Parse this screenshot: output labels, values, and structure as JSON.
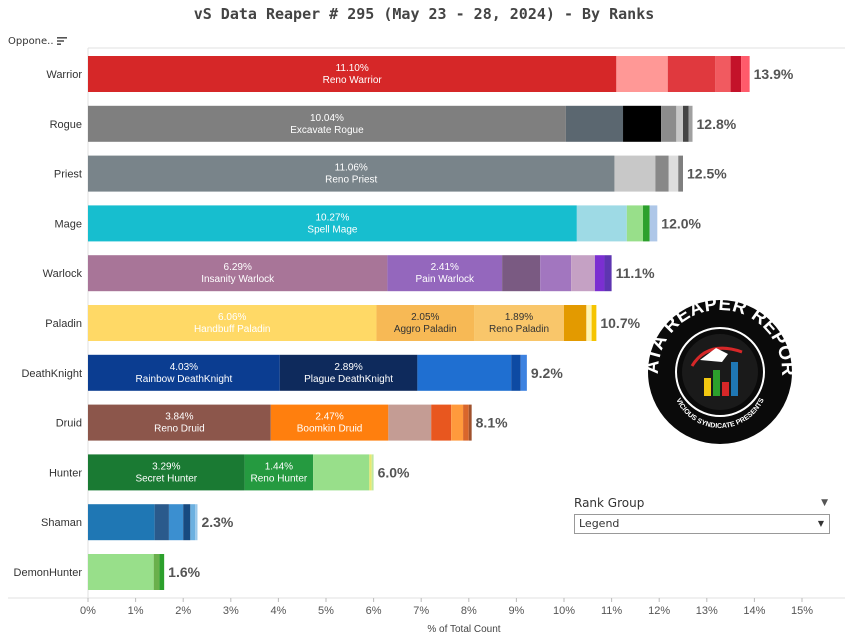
{
  "title": "vS Data Reaper #  295 (May 23 - 28, 2024) - By Ranks",
  "header": {
    "opponent_label": "Oppone..",
    "sort_icon": "sort-descending-icon"
  },
  "filter": {
    "title": "Rank Group",
    "selected": "Legend"
  },
  "logo": {
    "text_top": "DATA REAPER REPORT",
    "text_bottom": "VICIOUS SYNDICATE PRESENTS"
  },
  "chart_data": {
    "type": "bar",
    "orientation": "horizontal",
    "stacked": true,
    "xlabel": "% of Total Count",
    "xlim": [
      0,
      15.5
    ],
    "xticks": [
      "0%",
      "1%",
      "2%",
      "3%",
      "4%",
      "5%",
      "6%",
      "7%",
      "8%",
      "9%",
      "10%",
      "11%",
      "12%",
      "13%",
      "14%",
      "15%"
    ],
    "grid": false,
    "categories": [
      "Warrior",
      "Rogue",
      "Priest",
      "Mage",
      "Warlock",
      "Paladin",
      "DeathKnight",
      "Druid",
      "Hunter",
      "Shaman",
      "DemonHunter"
    ],
    "rows": [
      {
        "class": "Warrior",
        "total": "13.9%",
        "segments": [
          {
            "name": "Reno Warrior",
            "value": 11.1,
            "label": "11.10%",
            "color": "#d62728"
          },
          {
            "value": 1.08,
            "color": "#ff9896"
          },
          {
            "value": 1.0,
            "color": "#e0393e"
          },
          {
            "value": 0.32,
            "color": "#f15a60"
          },
          {
            "value": 0.22,
            "color": "#c4122a"
          },
          {
            "value": 0.18,
            "color": "#ff5b6b"
          }
        ]
      },
      {
        "class": "Rogue",
        "total": "12.8%",
        "segments": [
          {
            "name": "Excavate Rogue",
            "value": 10.04,
            "label": "10.04%",
            "color": "#7f7f7f"
          },
          {
            "value": 1.2,
            "color": "#5b6770"
          },
          {
            "value": 0.8,
            "color": "#000000"
          },
          {
            "value": 0.32,
            "color": "#8c8c8c"
          },
          {
            "value": 0.14,
            "color": "#c7c7c7"
          },
          {
            "value": 0.12,
            "color": "#444444"
          },
          {
            "value": 0.08,
            "color": "#a0a0a0"
          }
        ]
      },
      {
        "class": "Priest",
        "total": "12.5%",
        "segments": [
          {
            "name": "Reno Priest",
            "value": 11.06,
            "label": "11.06%",
            "color": "#79848a"
          },
          {
            "value": 0.86,
            "color": "#c8c8c8"
          },
          {
            "value": 0.28,
            "color": "#888888"
          },
          {
            "value": 0.2,
            "color": "#dddddd"
          },
          {
            "value": 0.1,
            "color": "#7f7f7f"
          }
        ]
      },
      {
        "class": "Mage",
        "total": "12.0%",
        "segments": [
          {
            "name": "Spell Mage",
            "value": 10.27,
            "label": "10.27%",
            "color": "#17becf"
          },
          {
            "value": 1.05,
            "color": "#9edae5"
          },
          {
            "value": 0.34,
            "color": "#98df8a"
          },
          {
            "value": 0.14,
            "color": "#2ca02c"
          },
          {
            "value": 0.16,
            "color": "#aec7e8"
          }
        ]
      },
      {
        "class": "Warlock",
        "total": "11.1%",
        "segments": [
          {
            "name": "Insanity Warlock",
            "value": 6.29,
            "label": "6.29%",
            "color": "#a87598"
          },
          {
            "name": "Pain Warlock",
            "value": 2.41,
            "label": "2.41%",
            "color": "#9467bd"
          },
          {
            "value": 0.8,
            "color": "#7a5a82"
          },
          {
            "value": 0.65,
            "color": "#a276bf"
          },
          {
            "value": 0.5,
            "color": "#c5a1c4"
          },
          {
            "value": 0.2,
            "color": "#7b2fd1"
          },
          {
            "value": 0.15,
            "color": "#5e35b1"
          }
        ]
      },
      {
        "class": "Paladin",
        "total": "10.7%",
        "segments": [
          {
            "name": "Handbuff Paladin",
            "value": 6.06,
            "label": "6.06%",
            "color": "#ffd966"
          },
          {
            "name": "Aggro Paladin",
            "value": 2.05,
            "label": "2.05%",
            "color": "#f7b955",
            "dark": true
          },
          {
            "name": "Reno Paladin",
            "value": 1.89,
            "label": "1.89%",
            "color": "#f9c66a",
            "dark": true
          },
          {
            "value": 0.47,
            "color": "#e39a00"
          },
          {
            "value": 0.11,
            "color": "#fff3b0"
          },
          {
            "value": 0.1,
            "color": "#f5c400"
          }
        ]
      },
      {
        "class": "DeathKnight",
        "total": "9.2%",
        "segments": [
          {
            "name": "Rainbow DeathKnight",
            "value": 4.03,
            "label": "4.03%",
            "color": "#0b3d91"
          },
          {
            "name": "Plague DeathKnight",
            "value": 2.89,
            "label": "2.89%",
            "color": "#0e2a5c"
          },
          {
            "value": 1.97,
            "color": "#1f6fd1"
          },
          {
            "value": 0.2,
            "color": "#0d4aa3"
          },
          {
            "value": 0.13,
            "color": "#3d82e0"
          }
        ]
      },
      {
        "class": "Druid",
        "total": "8.1%",
        "segments": [
          {
            "name": "Reno Druid",
            "value": 3.84,
            "label": "3.84%",
            "color": "#8c564b"
          },
          {
            "name": "Boomkin Druid",
            "value": 2.47,
            "label": "2.47%",
            "color": "#ff7f0e"
          },
          {
            "value": 0.9,
            "color": "#c49c94"
          },
          {
            "value": 0.42,
            "color": "#e8571f"
          },
          {
            "value": 0.25,
            "color": "#ff9a3c"
          },
          {
            "value": 0.12,
            "color": "#d9662b"
          },
          {
            "value": 0.06,
            "color": "#a0522d"
          }
        ]
      },
      {
        "class": "Hunter",
        "total": "6.0%",
        "segments": [
          {
            "name": "Secret Hunter",
            "value": 3.29,
            "label": "3.29%",
            "color": "#1a7a33"
          },
          {
            "name": "Reno Hunter",
            "value": 1.44,
            "label": "1.44%",
            "color": "#259a40"
          },
          {
            "value": 1.18,
            "color": "#98df8a"
          },
          {
            "value": 0.05,
            "color": "#e8e870"
          },
          {
            "value": 0.04,
            "color": "#bfe8a0"
          }
        ]
      },
      {
        "class": "Shaman",
        "total": "2.3%",
        "segments": [
          {
            "value": 1.4,
            "color": "#1f77b4"
          },
          {
            "value": 0.3,
            "color": "#2a5a8c"
          },
          {
            "value": 0.3,
            "color": "#3b8fd0"
          },
          {
            "value": 0.15,
            "color": "#174a80"
          },
          {
            "value": 0.1,
            "color": "#6cb0e0"
          },
          {
            "value": 0.05,
            "color": "#9ac8ea"
          }
        ]
      },
      {
        "class": "DemonHunter",
        "total": "1.6%",
        "segments": [
          {
            "value": 1.38,
            "color": "#98df8a"
          },
          {
            "value": 0.12,
            "color": "#6ab04c"
          },
          {
            "value": 0.1,
            "color": "#2ca02c"
          }
        ]
      }
    ]
  }
}
